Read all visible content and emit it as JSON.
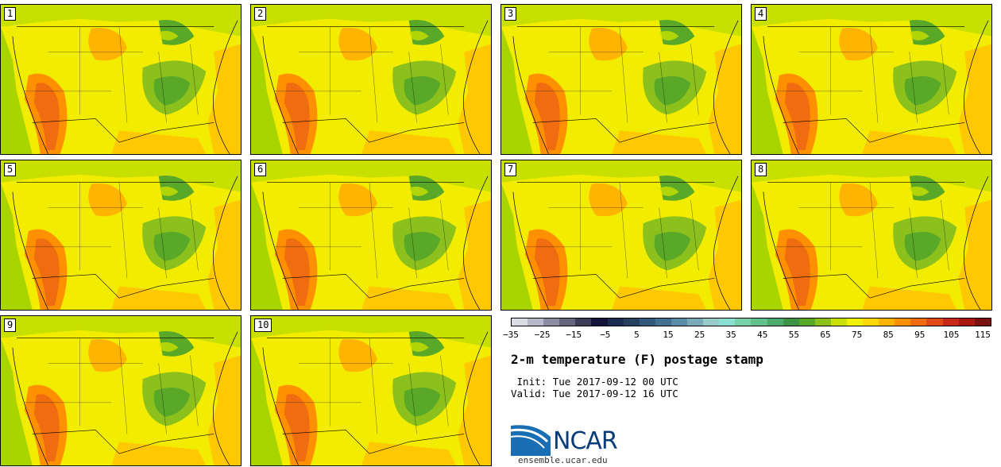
{
  "panels": [
    {
      "label": "1"
    },
    {
      "label": "2"
    },
    {
      "label": "3"
    },
    {
      "label": "4"
    },
    {
      "label": "5"
    },
    {
      "label": "6"
    },
    {
      "label": "7"
    },
    {
      "label": "8"
    },
    {
      "label": "9"
    },
    {
      "label": "10"
    }
  ],
  "colorbar": {
    "colors": [
      "#dcdce4",
      "#b8b8c8",
      "#8c8ca0",
      "#64647c",
      "#3c3c58",
      "#14143a",
      "#1c2c50",
      "#284060",
      "#34587a",
      "#427090",
      "#5a8ca8",
      "#78aab8",
      "#98ccc8",
      "#8ae0d0",
      "#78d0a8",
      "#62c08c",
      "#4caa6c",
      "#3c9444",
      "#5aa828",
      "#8cc01c",
      "#c8e000",
      "#f0f000",
      "#ffd700",
      "#ffb400",
      "#ff9000",
      "#f06c10",
      "#e04818",
      "#c82818",
      "#a81812",
      "#7a1010"
    ],
    "tick_labels": [
      "−35",
      "−25",
      "−15",
      "−5",
      "5",
      "15",
      "25",
      "35",
      "45",
      "55",
      "65",
      "75",
      "85",
      "95",
      "105",
      "115"
    ]
  },
  "title": "2-m temperature (F) postage stamp",
  "init_line": " Init: Tue 2017-09-12 00 UTC",
  "valid_line": "Valid: Tue 2017-09-12 16 UTC",
  "logo_text": "NCAR",
  "site": "ensemble.ucar.edu"
}
